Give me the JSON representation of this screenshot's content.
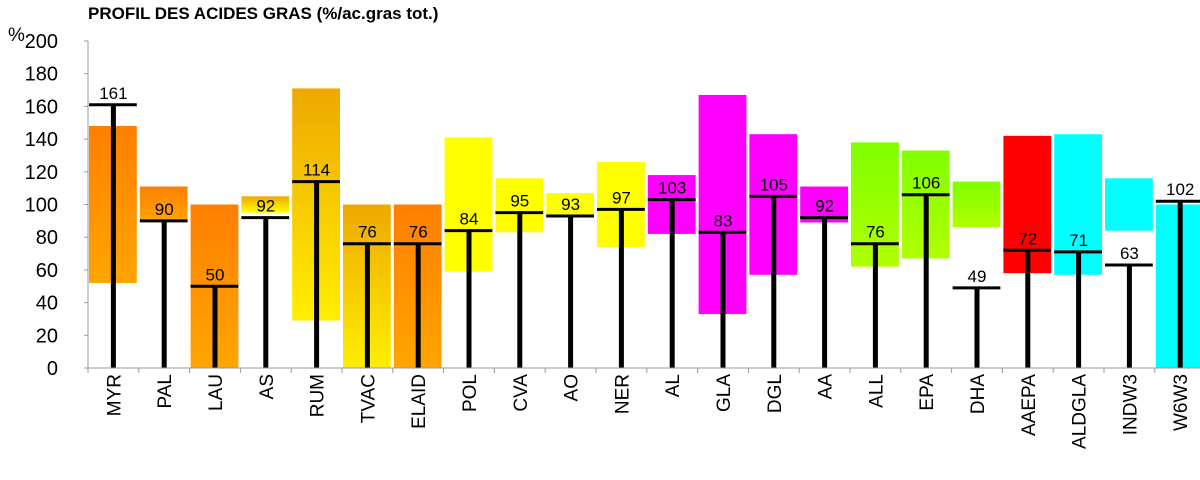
{
  "chart_data": {
    "type": "bar",
    "title": "PROFIL DES ACIDES GRAS (%/ac.gras tot.)",
    "ylabel": "%",
    "ylim": [
      0,
      200
    ],
    "yticks": [
      0,
      20,
      40,
      60,
      80,
      100,
      120,
      140,
      160,
      180,
      200
    ],
    "grid": false,
    "categories": [
      "MYR",
      "PAL",
      "LAU",
      "AS",
      "RUM",
      "TVAC",
      "ELAID",
      "POL",
      "CVA",
      "AO",
      "NER",
      "AL",
      "GLA",
      "DGL",
      "AA",
      "ALL",
      "EPA",
      "DHA",
      "AAEPA",
      "ALDGLA",
      "INDW3",
      "W6W3"
    ],
    "values": [
      161,
      90,
      50,
      92,
      114,
      76,
      76,
      84,
      95,
      93,
      97,
      103,
      83,
      105,
      92,
      76,
      106,
      49,
      72,
      71,
      63,
      102
    ],
    "reference_ranges": [
      [
        52,
        148
      ],
      [
        90,
        111
      ],
      [
        0,
        100
      ],
      [
        95,
        105
      ],
      [
        29,
        171
      ],
      [
        0,
        100
      ],
      [
        0,
        100
      ],
      [
        59,
        141
      ],
      [
        83,
        116
      ],
      [
        93,
        107
      ],
      [
        74,
        126
      ],
      [
        82,
        118
      ],
      [
        33,
        167
      ],
      [
        57,
        143
      ],
      [
        89,
        111
      ],
      [
        62,
        138
      ],
      [
        67,
        133
      ],
      [
        86,
        114
      ],
      [
        58,
        142
      ],
      [
        57,
        143
      ],
      [
        84,
        116
      ],
      [
        0,
        100
      ]
    ],
    "range_colors": [
      [
        "#ff7f00",
        "#ffa500"
      ],
      [
        "#ff7f00",
        "#ffa500"
      ],
      [
        "#ff7f00",
        "#ffa500"
      ],
      [
        "#f0a800",
        "#ffff00"
      ],
      [
        "#eea800",
        "#ffee00"
      ],
      [
        "#eea800",
        "#ffee00"
      ],
      [
        "#ff7f00",
        "#ffa500"
      ],
      [
        "#ffff00",
        "#ffff00"
      ],
      [
        "#ffff00",
        "#ffff00"
      ],
      [
        "#ffff00",
        "#ffff00"
      ],
      [
        "#ffff00",
        "#ffff00"
      ],
      [
        "#ff00ff",
        "#ff00ff"
      ],
      [
        "#ff00ff",
        "#ff00ff"
      ],
      [
        "#ff00ff",
        "#ff00ff"
      ],
      [
        "#ff00ff",
        "#ff00ff"
      ],
      [
        "#80ff00",
        "#b0ff00"
      ],
      [
        "#80ff00",
        "#b0ff00"
      ],
      [
        "#80ff00",
        "#b0ff00"
      ],
      [
        "#ff0000",
        "#ff0000"
      ],
      [
        "#00ffff",
        "#00ffff"
      ],
      [
        "#00ffff",
        "#00ffff"
      ],
      [
        "#00ffff",
        "#00ffff"
      ]
    ]
  }
}
